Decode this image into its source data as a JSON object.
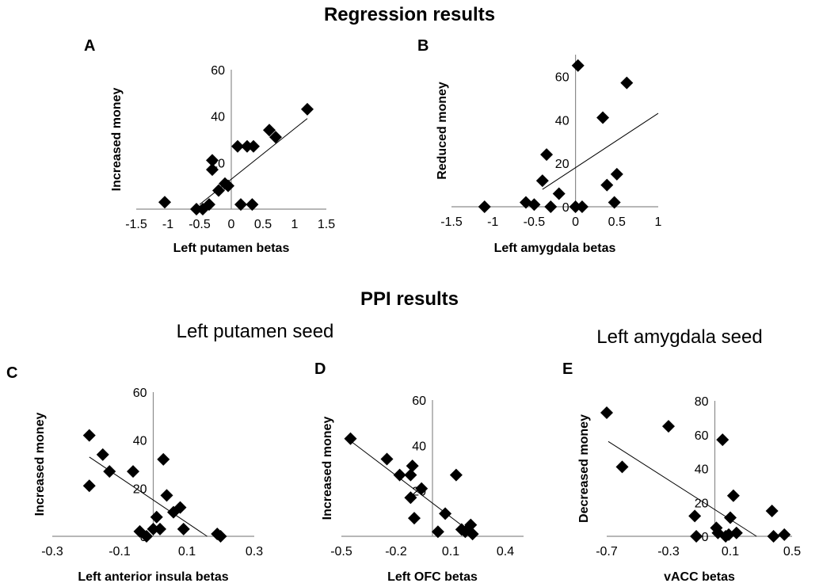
{
  "headers": {
    "regression": "Regression results",
    "ppi": "PPI results",
    "seed_left": "Left putamen seed",
    "seed_right": "Left amygdala seed"
  },
  "chart_data": [
    {
      "id": "A",
      "letter": "A",
      "type": "scatter",
      "xlabel": "Left putamen betas",
      "ylabel": "Increased money",
      "xlim": [
        -1.5,
        1.5
      ],
      "ylim": [
        0,
        60
      ],
      "xticks": [
        -1.5,
        -1,
        -0.5,
        0,
        0.5,
        1,
        1.5
      ],
      "yticks": [
        20,
        40,
        60
      ],
      "xticklabels": [
        "-1.5",
        "-1",
        "-0.5",
        "0",
        "0.5",
        "1",
        "1.5"
      ],
      "yticklabels": [
        "20",
        "40",
        "60"
      ],
      "trend": [
        [
          -0.5,
          2
        ],
        [
          1.2,
          39
        ]
      ],
      "points": [
        [
          -1.05,
          3
        ],
        [
          -0.55,
          0
        ],
        [
          -0.45,
          0
        ],
        [
          -0.35,
          2
        ],
        [
          -0.3,
          17
        ],
        [
          -0.3,
          21
        ],
        [
          -0.2,
          8
        ],
        [
          -0.1,
          11
        ],
        [
          -0.05,
          10
        ],
        [
          0.1,
          27
        ],
        [
          0.15,
          2
        ],
        [
          0.25,
          27
        ],
        [
          0.33,
          2
        ],
        [
          0.35,
          27
        ],
        [
          0.6,
          34
        ],
        [
          0.7,
          31
        ],
        [
          1.2,
          43
        ]
      ]
    },
    {
      "id": "B",
      "letter": "B",
      "type": "scatter",
      "xlabel": "Left amygdala betas",
      "ylabel": "Reduced money",
      "xlim": [
        -1.5,
        1
      ],
      "ylim": [
        0,
        70
      ],
      "xticks": [
        -1.5,
        -1,
        -0.5,
        0,
        0.5,
        1
      ],
      "yticks": [
        0,
        20,
        40,
        60
      ],
      "xticklabels": [
        "-1.5",
        "-1",
        "-0.5",
        "0",
        "0.5",
        "1"
      ],
      "yticklabels": [
        "0",
        "20",
        "40",
        "60"
      ],
      "trend": [
        [
          -0.4,
          8
        ],
        [
          1.0,
          43
        ]
      ],
      "points": [
        [
          -1.1,
          0
        ],
        [
          -0.6,
          2
        ],
        [
          -0.5,
          1
        ],
        [
          -0.4,
          12
        ],
        [
          -0.35,
          24
        ],
        [
          -0.3,
          0
        ],
        [
          -0.2,
          6
        ],
        [
          0.0,
          0
        ],
        [
          0.03,
          65
        ],
        [
          0.08,
          0
        ],
        [
          0.33,
          41
        ],
        [
          0.38,
          10
        ],
        [
          0.47,
          2
        ],
        [
          0.5,
          15
        ],
        [
          0.62,
          57
        ]
      ]
    },
    {
      "id": "C",
      "letter": "C",
      "type": "scatter",
      "xlabel": "Left anterior insula betas",
      "ylabel": "Increased money",
      "xlim": [
        -0.3,
        0.3
      ],
      "ylim": [
        0,
        60
      ],
      "xticks": [
        -0.3,
        -0.1,
        0.1,
        0.3
      ],
      "yticks": [
        0,
        20,
        40,
        60
      ],
      "xticklabels": [
        "-0.3",
        "-0.1",
        "0.1",
        "0.3"
      ],
      "yticklabels": [
        "0",
        "20",
        "40",
        "60"
      ],
      "trend": [
        [
          -0.19,
          33
        ],
        [
          0.16,
          0
        ]
      ],
      "points": [
        [
          -0.19,
          42
        ],
        [
          -0.19,
          21
        ],
        [
          -0.15,
          34
        ],
        [
          -0.13,
          27
        ],
        [
          -0.06,
          27
        ],
        [
          -0.04,
          2
        ],
        [
          -0.02,
          0
        ],
        [
          0.0,
          3
        ],
        [
          0.01,
          8
        ],
        [
          0.02,
          3
        ],
        [
          0.03,
          32
        ],
        [
          0.04,
          17
        ],
        [
          0.06,
          10
        ],
        [
          0.08,
          12
        ],
        [
          0.09,
          3
        ],
        [
          0.19,
          1
        ],
        [
          0.2,
          0
        ]
      ]
    },
    {
      "id": "D",
      "letter": "D",
      "type": "scatter",
      "xlabel": "Left OFC betas",
      "ylabel": "Increased money",
      "xlim": [
        -0.5,
        0.5
      ],
      "ylim": [
        0,
        60
      ],
      "xticks": [
        -0.5,
        -0.2,
        0.1,
        0.4
      ],
      "yticks": [
        20,
        40,
        60
      ],
      "xticklabels": [
        "-0.5",
        "-0.2",
        "0.1",
        "0.4"
      ],
      "yticklabels": [
        "20",
        "40",
        "60"
      ],
      "trend": [
        [
          -0.45,
          42
        ],
        [
          0.24,
          0
        ]
      ],
      "points": [
        [
          -0.45,
          43
        ],
        [
          -0.25,
          34
        ],
        [
          -0.18,
          27
        ],
        [
          -0.12,
          27
        ],
        [
          -0.12,
          17
        ],
        [
          -0.11,
          31
        ],
        [
          -0.1,
          8
        ],
        [
          -0.06,
          21
        ],
        [
          0.03,
          2
        ],
        [
          0.07,
          10
        ],
        [
          0.13,
          27
        ],
        [
          0.16,
          3
        ],
        [
          0.18,
          2
        ],
        [
          0.21,
          5
        ],
        [
          0.22,
          1
        ]
      ]
    },
    {
      "id": "E",
      "letter": "E",
      "type": "scatter",
      "xlabel": "vACC betas",
      "ylabel": "Decreased money",
      "xlim": [
        -0.7,
        0.5
      ],
      "ylim": [
        0,
        80
      ],
      "xticks": [
        -0.7,
        -0.3,
        0.1,
        0.5
      ],
      "yticks": [
        0,
        20,
        40,
        60,
        80
      ],
      "xticklabels": [
        "-0.7",
        "-0.3",
        "0.1",
        "0.5"
      ],
      "yticklabels": [
        "0",
        "20",
        "40",
        "60",
        "80"
      ],
      "trend": [
        [
          -0.69,
          56
        ],
        [
          0.27,
          0
        ]
      ],
      "points": [
        [
          -0.7,
          73
        ],
        [
          -0.6,
          41
        ],
        [
          -0.3,
          65
        ],
        [
          -0.13,
          12
        ],
        [
          -0.12,
          0
        ],
        [
          0.01,
          5
        ],
        [
          0.02,
          2
        ],
        [
          0.05,
          57
        ],
        [
          0.07,
          0
        ],
        [
          0.09,
          1
        ],
        [
          0.1,
          11
        ],
        [
          0.12,
          24
        ],
        [
          0.14,
          2
        ],
        [
          0.37,
          15
        ],
        [
          0.38,
          0
        ],
        [
          0.45,
          1
        ]
      ]
    }
  ]
}
